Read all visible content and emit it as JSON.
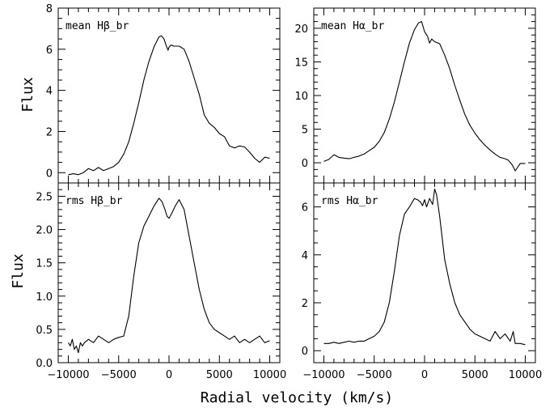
{
  "xlabel": "Radial velocity (km/s)",
  "colors": {
    "line": "#000000",
    "background": "#ffffff"
  },
  "chart_data": [
    {
      "type": "line",
      "label": "mean Hβ_br",
      "ylabel": "Flux",
      "xlim": [
        -11000,
        11000
      ],
      "ylim": [
        -0.5,
        8
      ],
      "xticks": [],
      "yticks": [
        0,
        2,
        4,
        6,
        8
      ],
      "ytick_labels": [
        "0",
        "2",
        "4",
        "6",
        "8"
      ],
      "y_minor_step": 0.5,
      "x": [
        -10000,
        -9500,
        -9000,
        -8500,
        -8000,
        -7500,
        -7000,
        -6500,
        -6000,
        -5500,
        -5000,
        -4500,
        -4000,
        -3500,
        -3000,
        -2500,
        -2000,
        -1500,
        -1000,
        -750,
        -500,
        -300,
        -100,
        0,
        200,
        500,
        1000,
        1500,
        2000,
        2500,
        3000,
        3500,
        4000,
        4500,
        5000,
        5500,
        6000,
        6500,
        7000,
        7500,
        8000,
        8500,
        9000,
        9500,
        10000
      ],
      "y": [
        -0.1,
        -0.05,
        -0.1,
        0.0,
        0.2,
        0.1,
        0.25,
        0.1,
        0.2,
        0.3,
        0.5,
        0.9,
        1.5,
        2.4,
        3.4,
        4.5,
        5.4,
        6.1,
        6.6,
        6.65,
        6.5,
        6.2,
        5.95,
        6.1,
        6.2,
        6.15,
        6.15,
        6.0,
        5.4,
        4.6,
        3.8,
        2.8,
        2.4,
        2.2,
        1.9,
        1.75,
        1.3,
        1.2,
        1.3,
        1.25,
        1.0,
        0.7,
        0.5,
        0.75,
        0.7
      ]
    },
    {
      "type": "line",
      "label": "mean Hα_br",
      "ylabel": "",
      "xlim": [
        -11000,
        11000
      ],
      "ylim": [
        -3,
        23
      ],
      "xticks": [],
      "yticks": [
        0,
        5,
        10,
        15,
        20
      ],
      "ytick_labels": [
        "0",
        "5",
        "10",
        "15",
        "20"
      ],
      "y_minor_step": 1,
      "x": [
        -10000,
        -9500,
        -9000,
        -8500,
        -8000,
        -7500,
        -7000,
        -6500,
        -6000,
        -5500,
        -5000,
        -4500,
        -4000,
        -3500,
        -3000,
        -2500,
        -2000,
        -1500,
        -1000,
        -600,
        -300,
        0,
        300,
        500,
        700,
        1000,
        1500,
        2000,
        2500,
        3000,
        3500,
        4000,
        4500,
        5000,
        5500,
        6000,
        6500,
        7000,
        7500,
        8000,
        8300,
        8700,
        9000,
        9500,
        10000
      ],
      "y": [
        0.2,
        0.5,
        1.2,
        0.8,
        0.7,
        0.6,
        0.8,
        1.0,
        1.3,
        1.8,
        2.3,
        3.2,
        4.5,
        6.5,
        9.0,
        12.0,
        15.0,
        17.8,
        19.8,
        20.8,
        21.0,
        19.5,
        18.8,
        17.8,
        18.4,
        18.0,
        17.7,
        16.0,
        14.0,
        11.5,
        9.3,
        7.2,
        5.6,
        4.4,
        3.4,
        2.6,
        1.9,
        1.3,
        0.8,
        0.6,
        0.4,
        -0.3,
        -1.2,
        -0.1,
        -0.1
      ]
    },
    {
      "type": "line",
      "label": "rms Hβ_br",
      "ylabel": "Flux",
      "xlim": [
        -11000,
        11000
      ],
      "ylim": [
        0,
        2.7
      ],
      "xticks": [
        -10000,
        -5000,
        0,
        5000,
        10000
      ],
      "xtick_labels": [
        "−10000",
        "−5000",
        "0",
        "5000",
        "10000"
      ],
      "yticks": [
        0.0,
        0.5,
        1.0,
        1.5,
        2.0,
        2.5
      ],
      "ytick_labels": [
        "0.0",
        "0.5",
        "1.0",
        "1.5",
        "2.0",
        "2.5"
      ],
      "y_minor_step": 0.1,
      "x": [
        -10000,
        -9800,
        -9600,
        -9400,
        -9200,
        -9000,
        -8800,
        -8600,
        -8400,
        -8000,
        -7500,
        -7000,
        -6500,
        -6000,
        -5500,
        -5000,
        -4500,
        -4000,
        -3500,
        -3000,
        -2500,
        -2000,
        -1500,
        -1000,
        -700,
        -400,
        -200,
        0,
        300,
        600,
        1000,
        1500,
        2000,
        2500,
        3000,
        3500,
        4000,
        4500,
        5000,
        5500,
        6000,
        6500,
        7000,
        7500,
        8000,
        8500,
        9000,
        9500,
        10000
      ],
      "y": [
        0.3,
        0.25,
        0.35,
        0.2,
        0.25,
        0.15,
        0.3,
        0.25,
        0.3,
        0.35,
        0.3,
        0.4,
        0.35,
        0.3,
        0.35,
        0.38,
        0.4,
        0.7,
        1.3,
        1.8,
        2.05,
        2.2,
        2.35,
        2.47,
        2.42,
        2.3,
        2.2,
        2.17,
        2.25,
        2.35,
        2.45,
        2.3,
        1.9,
        1.5,
        1.1,
        0.8,
        0.6,
        0.5,
        0.45,
        0.4,
        0.35,
        0.4,
        0.3,
        0.35,
        0.3,
        0.35,
        0.4,
        0.3,
        0.33
      ]
    },
    {
      "type": "line",
      "label": "rms Hα_br",
      "ylabel": "",
      "xlim": [
        -11000,
        11000
      ],
      "ylim": [
        -0.5,
        7
      ],
      "xticks": [
        -10000,
        -5000,
        0,
        5000,
        10000
      ],
      "xtick_labels": [
        "−10000",
        "−5000",
        "0",
        "5000",
        "10000"
      ],
      "yticks": [
        0,
        2,
        4,
        6
      ],
      "ytick_labels": [
        "0",
        "2",
        "4",
        "6"
      ],
      "y_minor_step": 0.5,
      "x": [
        -10000,
        -9500,
        -9000,
        -8500,
        -8000,
        -7500,
        -7000,
        -6500,
        -6000,
        -5500,
        -5000,
        -4500,
        -4000,
        -3500,
        -3000,
        -2500,
        -2000,
        -1500,
        -1000,
        -700,
        -400,
        -200,
        0,
        200,
        500,
        800,
        1000,
        1200,
        1500,
        2000,
        2500,
        3000,
        3500,
        4000,
        4500,
        5000,
        5500,
        6000,
        6500,
        7000,
        7500,
        8000,
        8500,
        8800,
        9000,
        9500,
        10000
      ],
      "y": [
        0.3,
        0.3,
        0.35,
        0.3,
        0.35,
        0.4,
        0.35,
        0.4,
        0.4,
        0.5,
        0.6,
        0.8,
        1.2,
        2.0,
        3.3,
        4.8,
        5.7,
        6.0,
        6.35,
        6.3,
        6.2,
        6.05,
        6.3,
        6.0,
        6.35,
        6.1,
        6.75,
        6.5,
        5.6,
        3.8,
        2.8,
        2.0,
        1.5,
        1.2,
        0.9,
        0.7,
        0.6,
        0.5,
        0.4,
        0.8,
        0.5,
        0.7,
        0.4,
        0.8,
        0.3,
        0.3,
        0.25
      ]
    }
  ]
}
